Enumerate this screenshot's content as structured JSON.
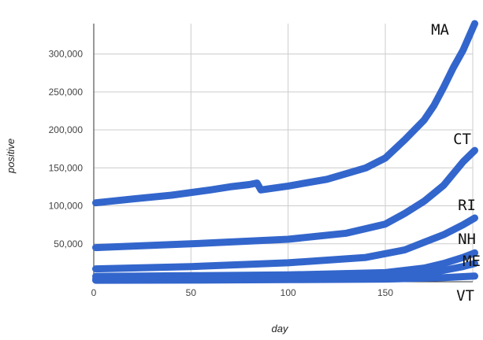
{
  "chart_data": {
    "type": "line",
    "title": "",
    "xlabel": "day",
    "ylabel": "positive",
    "xlim": [
      0,
      195
    ],
    "ylim": [
      0,
      340000
    ],
    "grid": true,
    "line_color": "#3366cc",
    "x_ticks": [
      {
        "value": 0,
        "label": "0"
      },
      {
        "value": 50,
        "label": "50"
      },
      {
        "value": 100,
        "label": "100"
      },
      {
        "value": 150,
        "label": "150"
      }
    ],
    "y_ticks": [
      {
        "value": 50000,
        "label": "50,000"
      },
      {
        "value": 100000,
        "label": "100,000"
      },
      {
        "value": 150000,
        "label": "150,000"
      },
      {
        "value": 200000,
        "label": "200,000"
      },
      {
        "value": 250000,
        "label": "250,000"
      },
      {
        "value": 300000,
        "label": "300,000"
      }
    ],
    "series": [
      {
        "name": "MA",
        "x": [
          1,
          20,
          40,
          60,
          70,
          80,
          84,
          86,
          100,
          120,
          140,
          150,
          160,
          170,
          175,
          180,
          185,
          190,
          196
        ],
        "values": [
          104000,
          109000,
          114000,
          121000,
          125000,
          128000,
          130000,
          121000,
          126000,
          135000,
          150000,
          163000,
          187000,
          213000,
          232000,
          256000,
          282000,
          305000,
          340000
        ]
      },
      {
        "name": "CT",
        "x": [
          1,
          50,
          100,
          130,
          150,
          160,
          170,
          180,
          190,
          196
        ],
        "values": [
          45000,
          50000,
          56000,
          64000,
          76000,
          90000,
          106000,
          127000,
          158000,
          173000
        ]
      },
      {
        "name": "RI",
        "x": [
          1,
          50,
          100,
          140,
          160,
          170,
          180,
          190,
          196
        ],
        "values": [
          17000,
          20000,
          25000,
          32000,
          42000,
          52000,
          62000,
          75000,
          84000
        ]
      },
      {
        "name": "NH",
        "x": [
          1,
          50,
          100,
          150,
          170,
          180,
          190,
          196
        ],
        "values": [
          7000,
          8000,
          9000,
          12000,
          18000,
          24000,
          32000,
          38000
        ]
      },
      {
        "name": "ME",
        "x": [
          1,
          50,
          100,
          150,
          170,
          180,
          190,
          196
        ],
        "values": [
          3000,
          3500,
          4500,
          7000,
          11000,
          15000,
          20000,
          24000
        ]
      },
      {
        "name": "VT",
        "x": [
          1,
          50,
          100,
          150,
          180,
          196
        ],
        "values": [
          2000,
          2200,
          2800,
          3500,
          5500,
          7500
        ]
      }
    ]
  }
}
